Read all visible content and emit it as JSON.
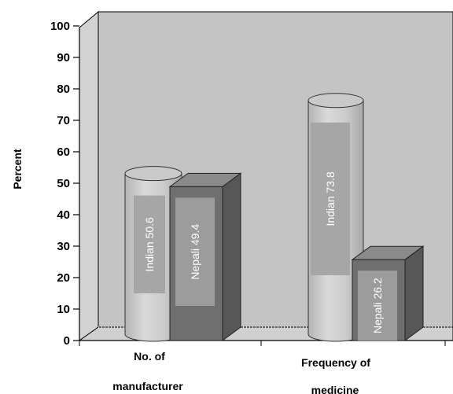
{
  "chart_data": {
    "type": "bar",
    "style": "3d",
    "ylabel": "Percent",
    "ylim": [
      0,
      100
    ],
    "yticks": [
      0,
      10,
      20,
      30,
      40,
      50,
      60,
      70,
      80,
      90,
      100
    ],
    "categories": [
      {
        "line1": "No. of",
        "line2": "manufacturer"
      },
      {
        "line1": "Frequency of",
        "line2": "medicine"
      }
    ],
    "series": [
      {
        "name": "Indian",
        "shape": "cylinder",
        "values": [
          50.6,
          73.8
        ]
      },
      {
        "name": "Nepali",
        "shape": "box",
        "values": [
          49.4,
          26.2
        ]
      }
    ],
    "data_labels": [
      [
        "Indian 50.6",
        "Nepali 49.4"
      ],
      [
        "Indian 73.8",
        "Nepali 26.2"
      ]
    ],
    "grid": false,
    "legend": "none",
    "colors": {
      "wall": "#c4c4c4",
      "floor": "#d0d0d0",
      "cylinder": "#c9c9c9",
      "box_front": "#6f6f6f",
      "box_top": "#8a8a8a",
      "box_side": "#575757",
      "label_box_indian": "#a6a6a6",
      "label_box_nepali": "#9c9c9c"
    }
  }
}
